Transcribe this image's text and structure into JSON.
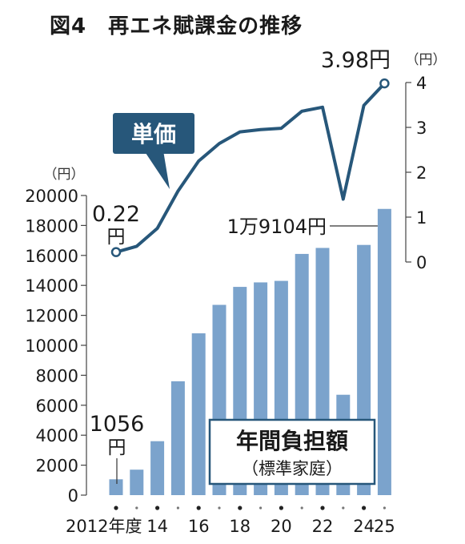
{
  "figure": {
    "title": "図4　再エネ賦課金の推移"
  },
  "chart_data": [
    {
      "type": "bar",
      "name": "年間負担額",
      "subtitle": "（標準家庭）",
      "unit": "（円）",
      "x": [
        2012,
        2013,
        2014,
        2015,
        2016,
        2017,
        2018,
        2019,
        2020,
        2021,
        2022,
        2023,
        2024,
        2025
      ],
      "values": [
        1056,
        1700,
        3600,
        7600,
        10800,
        12700,
        13900,
        14200,
        14300,
        16100,
        16500,
        6700,
        16700,
        19104
      ],
      "ylim": [
        0,
        20000
      ],
      "yticks": [
        "0",
        "2000",
        "4000",
        "6000",
        "8000",
        "10000",
        "12000",
        "14000",
        "16000",
        "18000",
        "20000"
      ],
      "xtick_labels": [
        {
          "x": 2012,
          "label": "2012年度"
        },
        {
          "x": 2014,
          "label": "14"
        },
        {
          "x": 2016,
          "label": "16"
        },
        {
          "x": 2018,
          "label": "18"
        },
        {
          "x": 2020,
          "label": "20"
        },
        {
          "x": 2022,
          "label": "22"
        },
        {
          "x": 2024,
          "label": "24"
        },
        {
          "x": 2025,
          "label": "25"
        }
      ],
      "annotations": [
        {
          "x": 2012,
          "text": "1056",
          "text2": "円"
        },
        {
          "x": 2025,
          "text": "1万9104円"
        }
      ],
      "color": "#7ba3cc"
    },
    {
      "type": "line",
      "name": "単価",
      "unit": "（円）",
      "x": [
        2012,
        2013,
        2014,
        2015,
        2016,
        2017,
        2018,
        2019,
        2020,
        2021,
        2022,
        2023,
        2024,
        2025
      ],
      "values": [
        0.22,
        0.35,
        0.75,
        1.58,
        2.25,
        2.64,
        2.9,
        2.95,
        2.98,
        3.36,
        3.45,
        1.4,
        3.49,
        3.98
      ],
      "ylim": [
        0,
        4
      ],
      "yticks": [
        "0",
        "1",
        "2",
        "3",
        "4"
      ],
      "annotations": [
        {
          "x": 2012,
          "text": "0.22",
          "text2": "円"
        },
        {
          "x": 2025,
          "text": "3.98円"
        }
      ],
      "color": "#27577a"
    }
  ]
}
